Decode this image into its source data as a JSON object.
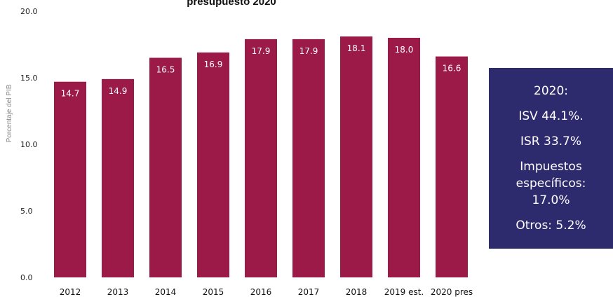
{
  "chart_data": {
    "type": "bar",
    "title": "presupuesto 2020",
    "ylabel": "Porcentaje del PIB",
    "xlabel": "",
    "ylim": [
      0,
      20
    ],
    "yticks": [
      "0.0",
      "5.0",
      "10.0",
      "15.0",
      "20.0"
    ],
    "grid": false,
    "categories": [
      "2012",
      "2013",
      "2014",
      "2015",
      "2016",
      "2017",
      "2018",
      "2019 est.",
      "2020 pres"
    ],
    "values": [
      14.7,
      14.9,
      16.5,
      16.9,
      17.9,
      17.9,
      18.1,
      18.0,
      16.6
    ],
    "data_labels": [
      "14.7",
      "14.9",
      "16.5",
      "16.9",
      "17.9",
      "17.9",
      "18.1",
      "18.0",
      "16.6"
    ],
    "bar_color": "#9b1a48"
  },
  "info_box": {
    "year": "2020:",
    "isv": "ISV 44.1%.",
    "isr": "ISR 33.7%",
    "especificos_1": "Impuestos",
    "especificos_2": "específicos:",
    "especificos_3": "17.0%",
    "otros": "Otros: 5.2%",
    "background": "#2e2a6e"
  }
}
